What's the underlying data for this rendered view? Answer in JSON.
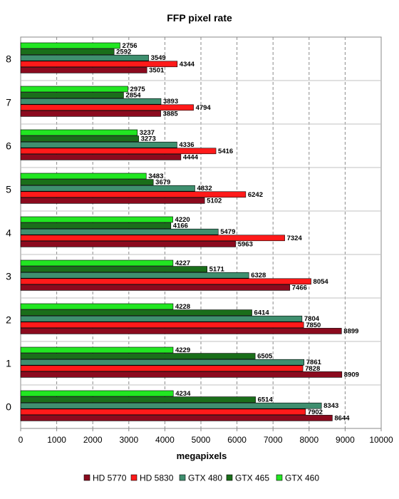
{
  "chart_data": {
    "type": "bar",
    "orientation": "horizontal",
    "title": "FFP pixel rate",
    "xlabel": "megapixels",
    "ylabel": "",
    "xlim": [
      0,
      10000
    ],
    "x_ticks": [
      0,
      1000,
      2000,
      3000,
      4000,
      5000,
      6000,
      7000,
      8000,
      9000,
      10000
    ],
    "grid": "vertical dashed",
    "legend_position": "bottom",
    "categories": [
      "8",
      "7",
      "6",
      "5",
      "4",
      "3",
      "2",
      "1",
      "0"
    ],
    "series": [
      {
        "name": "HD 5770",
        "color": "#8b0a1e",
        "values": [
          3501,
          3885,
          4444,
          5102,
          5963,
          7466,
          8899,
          8909,
          8644
        ]
      },
      {
        "name": "HD 5830",
        "color": "#ff1a1a",
        "values": [
          4344,
          4794,
          5416,
          6242,
          7324,
          8054,
          7850,
          7828,
          7902
        ]
      },
      {
        "name": "GTX 480",
        "color": "#3f8f6f",
        "values": [
          3549,
          3893,
          4336,
          4832,
          5479,
          6328,
          7804,
          7861,
          8343
        ]
      },
      {
        "name": "GTX 465",
        "color": "#1a6e1a",
        "values": [
          2592,
          2854,
          3273,
          3679,
          4166,
          5171,
          6414,
          6505,
          6514
        ]
      },
      {
        "name": "GTX 460",
        "color": "#22e622",
        "values": [
          2756,
          2975,
          3237,
          3483,
          4220,
          4227,
          4228,
          4229,
          4234
        ]
      }
    ]
  }
}
